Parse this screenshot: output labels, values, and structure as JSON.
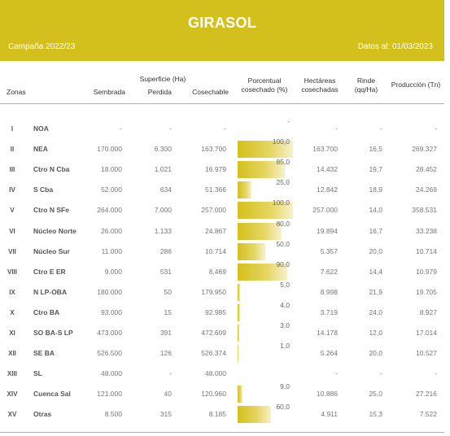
{
  "banner": {
    "title": "GIRASOL",
    "campaign": "Campaña 2022/23",
    "date": "Datos al: 01/03/2023",
    "color": "#d4c01c"
  },
  "headers": {
    "zonas": "Zonas",
    "superficie": "Superficie (Ha)",
    "sembrada": "Sembrada",
    "perdida": "Perdida",
    "cosechable": "Cosechable",
    "porcentual": "Porcentual",
    "porcentual_sub": "cosechado (%)",
    "hectareas": "Hectáreas",
    "hectareas_sub": "cosechadas",
    "rinde": "Rinde",
    "rinde_sub": "(qq/Ha)",
    "produccion": "Producción (Tn)"
  },
  "rows": [
    {
      "num": "I",
      "zona": "NOA",
      "sembrada": "-",
      "perdida": "-",
      "cosechable": "-",
      "pct_label": "-",
      "pct": 0,
      "hectareas": "-",
      "rinde": "-",
      "produccion": "-"
    },
    {
      "num": "II",
      "zona": "NEA",
      "sembrada": "170.000",
      "perdida": "6.300",
      "cosechable": "163.700",
      "pct_label": "100,0",
      "pct": 100,
      "hectareas": "163.700",
      "rinde": "16,5",
      "produccion": "269.327"
    },
    {
      "num": "III",
      "zona": "Ctro N Cba",
      "sembrada": "18.000",
      "perdida": "1.021",
      "cosechable": "16.979",
      "pct_label": "85,0",
      "pct": 85,
      "hectareas": "14.432",
      "rinde": "19,7",
      "produccion": "28.452"
    },
    {
      "num": "IV",
      "zona": "S Cba",
      "sembrada": "52.000",
      "perdida": "634",
      "cosechable": "51.366",
      "pct_label": "25,0",
      "pct": 25,
      "hectareas": "12.842",
      "rinde": "18,9",
      "produccion": "24.269"
    },
    {
      "num": "V",
      "zona": "Ctro N SFe",
      "sembrada": "264.000",
      "perdida": "7.000",
      "cosechable": "257.000",
      "pct_label": "100,0",
      "pct": 100,
      "hectareas": "257.000",
      "rinde": "14,0",
      "produccion": "358.531"
    },
    {
      "num": "VI",
      "zona": "Núcleo Norte",
      "sembrada": "26.000",
      "perdida": "1.133",
      "cosechable": "24.867",
      "pct_label": "80,0",
      "pct": 80,
      "hectareas": "19.894",
      "rinde": "16,7",
      "produccion": "33.238"
    },
    {
      "num": "VII",
      "zona": "Núcleo Sur",
      "sembrada": "11.000",
      "perdida": "286",
      "cosechable": "10.714",
      "pct_label": "50,0",
      "pct": 50,
      "hectareas": "5.357",
      "rinde": "20,0",
      "produccion": "10.714"
    },
    {
      "num": "VIII",
      "zona": "Ctro E ER",
      "sembrada": "9.000",
      "perdida": "531",
      "cosechable": "8.469",
      "pct_label": "90,0",
      "pct": 90,
      "hectareas": "7.622",
      "rinde": "14,4",
      "produccion": "10.979"
    },
    {
      "num": "IX",
      "zona": "N LP-OBA",
      "sembrada": "180.000",
      "perdida": "50",
      "cosechable": "179.950",
      "pct_label": "5,0",
      "pct": 5,
      "hectareas": "8.998",
      "rinde": "21,9",
      "produccion": "19.705"
    },
    {
      "num": "X",
      "zona": "Ctro BA",
      "sembrada": "93.000",
      "perdida": "15",
      "cosechable": "92.985",
      "pct_label": "4,0",
      "pct": 4,
      "hectareas": "3.719",
      "rinde": "24,0",
      "produccion": "8.927"
    },
    {
      "num": "XI",
      "zona": "SO BA-S LP",
      "sembrada": "473.000",
      "perdida": "391",
      "cosechable": "472.609",
      "pct_label": "3,0",
      "pct": 3,
      "hectareas": "14.178",
      "rinde": "12,0",
      "produccion": "17.014"
    },
    {
      "num": "XII",
      "zona": "SE BA",
      "sembrada": "526.500",
      "perdida": "126",
      "cosechable": "526.374",
      "pct_label": "1,0",
      "pct": 1,
      "hectareas": "5.264",
      "rinde": "20,0",
      "produccion": "10.527"
    },
    {
      "num": "XIII",
      "zona": "SL",
      "sembrada": "48.000",
      "perdida": "-",
      "cosechable": "48.000",
      "pct_label": "",
      "pct": 0,
      "hectareas": "-",
      "rinde": "-",
      "produccion": "-"
    },
    {
      "num": "XIV",
      "zona": "Cuenca Sal",
      "sembrada": "121.000",
      "perdida": "40",
      "cosechable": "120.960",
      "pct_label": "9,0",
      "pct": 9,
      "hectareas": "10.886",
      "rinde": "25,0",
      "produccion": "27.216"
    },
    {
      "num": "XV",
      "zona": "Otras",
      "sembrada": "8.500",
      "perdida": "315",
      "cosechable": "8.185",
      "pct_label": "60,0",
      "pct": 60,
      "hectareas": "4.911",
      "rinde": "15,3",
      "produccion": "7.522"
    }
  ]
}
